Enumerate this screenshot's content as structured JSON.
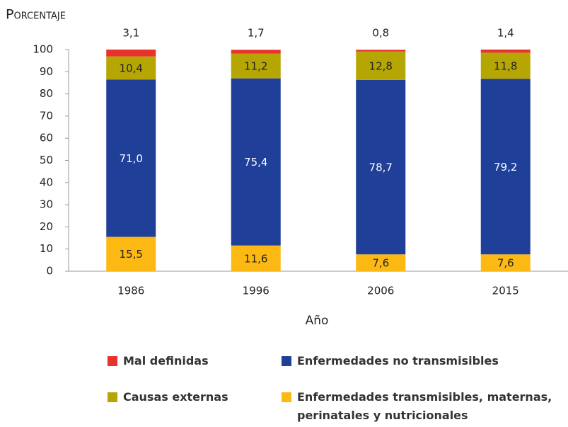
{
  "chart_data": {
    "type": "stacked_bar",
    "title": "Porcentaje",
    "x_label": "Año",
    "categories": [
      "1986",
      "1996",
      "2006",
      "2015"
    ],
    "series": [
      {
        "name": "Enfermedades transmisibles, maternas, perinatales y nutricionales",
        "color": "#fdb913",
        "values": [
          15.5,
          11.6,
          7.6,
          7.6
        ],
        "value_labels": [
          "15,5",
          "11,6",
          "7,6",
          "7,6"
        ]
      },
      {
        "name": "Enfermedades no transmisibles",
        "color": "#1f3f99",
        "values": [
          71.0,
          75.4,
          78.7,
          79.2
        ],
        "value_labels": [
          "71,0",
          "75,4",
          "78,7",
          "79,2"
        ]
      },
      {
        "name": "Causas externas",
        "color": "#b5a603",
        "values": [
          10.4,
          11.2,
          12.8,
          11.8
        ],
        "value_labels": [
          "10,4",
          "11,2",
          "12,8",
          "11,8"
        ]
      },
      {
        "name": "Mal definidas",
        "color": "#e8322a",
        "values": [
          3.1,
          1.7,
          0.8,
          1.4
        ],
        "value_labels": [
          "3,1",
          "1,7",
          "0,8",
          "1,4"
        ]
      }
    ],
    "ylim": [
      0,
      100
    ],
    "yticks": [
      0,
      10,
      20,
      30,
      40,
      50,
      60,
      70,
      80,
      90,
      100
    ]
  }
}
